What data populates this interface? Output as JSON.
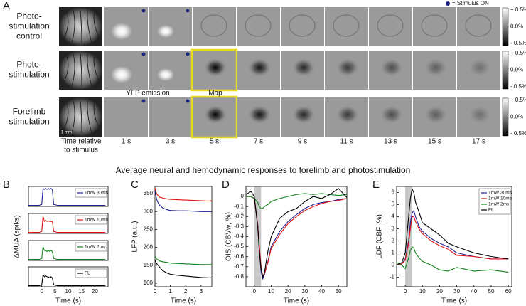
{
  "panel_a": {
    "label": "A",
    "legend": "= Stimulus ON",
    "rows": [
      {
        "label": [
          "Photo-",
          "stimulation",
          "control"
        ]
      },
      {
        "label": [
          "Photo-",
          "stimulation"
        ]
      },
      {
        "label": [
          "Forelimb",
          "stimulation"
        ]
      }
    ],
    "time_label": [
      "Time relative",
      "to stimulus"
    ],
    "times": [
      "1 s",
      "3 s",
      "5 s",
      "7 s",
      "9 s",
      "11 s",
      "13 s",
      "15 s",
      "17 s"
    ],
    "annotations": {
      "yfp": "YFP emission",
      "map": "Map",
      "scale": "1 mm"
    },
    "colorbar": [
      "+ 0.5%",
      "0.0%",
      "- 0.5%"
    ]
  },
  "figure_title": "Average neural and hemodynamic responses to forelimb and photostimulation",
  "chart_data": [
    {
      "type": "line",
      "panel": "B",
      "ylabel": "ΔMUA (spiks)",
      "xlim": [
        -5,
        25
      ],
      "ylim": [
        0,
        1
      ],
      "x": [
        -5,
        -1,
        0,
        0.5,
        1,
        1.5,
        2,
        2.5,
        3,
        3.5,
        4,
        4.5,
        6,
        10,
        15,
        20,
        24
      ],
      "series": [
        {
          "name": "1mW 30ms",
          "color": "#1f1f8f",
          "values": [
            0.05,
            0.05,
            0.1,
            0.9,
            0.85,
            0.9,
            0.85,
            0.9,
            0.85,
            0.9,
            0.85,
            0.1,
            0.05,
            0.05,
            0.05,
            0.05,
            0.05
          ]
        }
      ]
    },
    {
      "type": "line",
      "xlim": [
        -5,
        25
      ],
      "ylim": [
        0,
        1
      ],
      "x": [
        -5,
        -1,
        0,
        0.5,
        1,
        1.5,
        2,
        2.5,
        3,
        3.5,
        4,
        4.5,
        6,
        10,
        15,
        20,
        24
      ],
      "series": [
        {
          "name": "1mW 10ms",
          "color": "#e01010",
          "values": [
            0.05,
            0.05,
            0.1,
            0.85,
            0.6,
            0.65,
            0.6,
            0.62,
            0.6,
            0.6,
            0.6,
            0.1,
            0.05,
            0.05,
            0.05,
            0.05,
            0.05
          ]
        }
      ]
    },
    {
      "type": "line",
      "xlim": [
        -5,
        25
      ],
      "ylim": [
        0,
        1
      ],
      "x": [
        -5,
        -1,
        0,
        0.5,
        1,
        1.5,
        2,
        2.5,
        3,
        3.5,
        4,
        4.5,
        6,
        10,
        15,
        20,
        24
      ],
      "series": [
        {
          "name": "1mW 2ms",
          "color": "#10801a",
          "values": [
            0.05,
            0.05,
            0.1,
            0.7,
            0.5,
            0.5,
            0.45,
            0.5,
            0.45,
            0.5,
            0.45,
            0.1,
            0.05,
            0.05,
            0.05,
            0.05,
            0.05
          ]
        }
      ]
    },
    {
      "type": "line",
      "xlabel": "Time (s)",
      "xlim": [
        -5,
        25
      ],
      "ylim": [
        0,
        1
      ],
      "xticks": [
        0,
        5,
        10,
        15,
        20
      ],
      "x": [
        -5,
        -1,
        0,
        0.5,
        1,
        1.5,
        2,
        2.5,
        3,
        3.5,
        4,
        4.5,
        6,
        10,
        15,
        20,
        24
      ],
      "series": [
        {
          "name": "FL",
          "color": "#000000",
          "values": [
            0.05,
            0.05,
            0.1,
            0.6,
            0.5,
            0.55,
            0.5,
            0.5,
            0.45,
            0.5,
            0.45,
            0.1,
            0.05,
            0.05,
            0.05,
            0.05,
            0.05
          ]
        }
      ]
    },
    {
      "type": "line",
      "panel": "C",
      "ylabel": "LFP (a.u.)",
      "xlabel": "Time (s)",
      "xlim": [
        0,
        3.7
      ],
      "ylim": [
        90,
        370
      ],
      "xticks": [
        0,
        1,
        2,
        3
      ],
      "yticks": [
        100,
        150,
        200,
        250,
        300,
        350
      ],
      "x": [
        0,
        0.1,
        0.2,
        0.3,
        0.5,
        0.8,
        1,
        1.5,
        2,
        2.5,
        3,
        3.5,
        3.7
      ],
      "series": [
        {
          "color": "#e01010",
          "values": [
            365,
            350,
            345,
            340,
            338,
            335,
            334,
            333,
            332,
            331,
            330,
            329,
            330
          ]
        },
        {
          "color": "#1f1f8f",
          "values": [
            360,
            335,
            325,
            318,
            310,
            305,
            303,
            302,
            302,
            301,
            300,
            300,
            300
          ]
        },
        {
          "color": "#10801a",
          "values": [
            175,
            168,
            165,
            162,
            160,
            158,
            156,
            155,
            154,
            153,
            152,
            152,
            152
          ]
        },
        {
          "color": "#000000",
          "values": [
            165,
            155,
            150,
            145,
            135,
            128,
            125,
            122,
            120,
            118,
            116,
            115,
            115
          ]
        }
      ]
    },
    {
      "type": "line",
      "panel": "D",
      "ylabel": "OIS (CBVw; %)",
      "xlabel": "Time (s)",
      "xlim": [
        -5,
        55
      ],
      "ylim": [
        -0.9,
        0.1
      ],
      "xticks": [
        0,
        10,
        20,
        30,
        40,
        50
      ],
      "yticks": [
        0,
        -0.1,
        -0.2,
        -0.3,
        -0.4,
        -0.5,
        -0.6,
        -0.7,
        -0.8
      ],
      "stimulus_span": [
        0,
        4
      ],
      "x": [
        -5,
        -2,
        0,
        2,
        3,
        4,
        5,
        6,
        8,
        10,
        15,
        20,
        25,
        30,
        35,
        40,
        45,
        50,
        55
      ],
      "series": [
        {
          "color": "#1f1f8f",
          "values": [
            0,
            0,
            -0.02,
            -0.3,
            -0.55,
            -0.75,
            -0.82,
            -0.78,
            -0.65,
            -0.5,
            -0.35,
            -0.25,
            -0.18,
            -0.12,
            -0.08,
            -0.06,
            -0.05,
            -0.03,
            -0.02
          ]
        },
        {
          "color": "#e01010",
          "values": [
            0,
            0,
            -0.02,
            -0.28,
            -0.5,
            -0.7,
            -0.8,
            -0.77,
            -0.66,
            -0.52,
            -0.38,
            -0.27,
            -0.2,
            -0.14,
            -0.1,
            -0.07,
            -0.05,
            -0.04,
            -0.02
          ]
        },
        {
          "color": "#10801a",
          "values": [
            0,
            0,
            -0.02,
            -0.06,
            -0.1,
            -0.12,
            -0.12,
            -0.1,
            -0.08,
            -0.05,
            -0.02,
            0,
            0.02,
            0.03,
            0.02,
            0.03,
            0.02,
            0.01,
            0.02
          ]
        },
        {
          "color": "#000000",
          "values": [
            0.02,
            0.05,
            0,
            -0.3,
            -0.55,
            -0.72,
            -0.8,
            -0.76,
            -0.55,
            -0.4,
            -0.22,
            -0.15,
            -0.12,
            -0.05,
            0,
            -0.02,
            0.02,
            0.08,
            -0.01
          ]
        }
      ]
    },
    {
      "type": "line",
      "panel": "E",
      "ylabel": "LDF (CBF; %)",
      "xlabel": "Time (s)",
      "xlim": [
        -5,
        62
      ],
      "ylim": [
        -1.8,
        6.5
      ],
      "xticks": [
        0,
        10,
        20,
        30,
        40,
        50,
        60
      ],
      "yticks": [
        -1,
        0,
        1,
        2,
        3,
        4,
        5,
        6
      ],
      "stimulus_span": [
        0,
        4
      ],
      "x": [
        -5,
        -2,
        0,
        2,
        3,
        4,
        5,
        6,
        8,
        10,
        15,
        20,
        25,
        30,
        40,
        50,
        60
      ],
      "series": [
        {
          "name": "1mW 30ms",
          "color": "#1f1f8f",
          "values": [
            0,
            0.1,
            0.5,
            2,
            3.5,
            4.3,
            4.5,
            4,
            3.2,
            2.8,
            2.2,
            1.8,
            1.5,
            1,
            0.7,
            0.5,
            0.5
          ]
        },
        {
          "name": "1mW 10ms",
          "color": "#e01010",
          "values": [
            0,
            0.1,
            0.4,
            1.8,
            3,
            4,
            4,
            3.6,
            3,
            2.6,
            2,
            1.6,
            1.3,
            0.8,
            0.7,
            0.5,
            0.5
          ]
        },
        {
          "name": "1mW 2ms",
          "color": "#10801a",
          "values": [
            0.2,
            0,
            -0.3,
            0.6,
            1.2,
            1.5,
            1.4,
            1,
            0.6,
            0.3,
            0,
            -0.4,
            -0.5,
            -0.2,
            -0.5,
            -0.4,
            -0.6
          ]
        },
        {
          "name": "FL",
          "color": "#000000",
          "values": [
            0,
            0.2,
            1,
            4,
            5.5,
            6.3,
            6,
            5.2,
            4.4,
            3.5,
            3,
            2.5,
            1.8,
            1.5,
            1,
            0.7,
            0.5
          ]
        }
      ]
    }
  ]
}
